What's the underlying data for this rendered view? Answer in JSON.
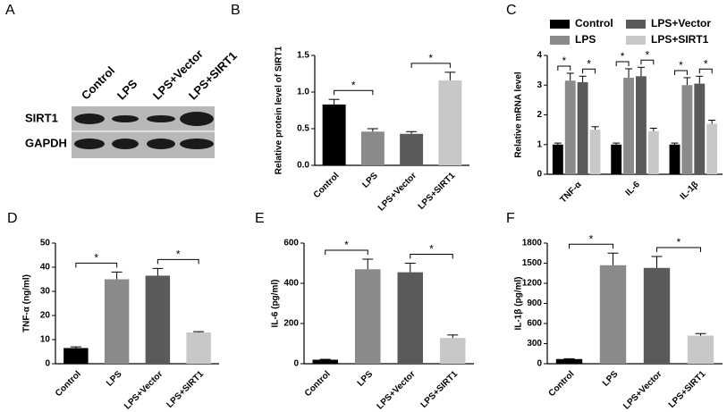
{
  "blot": {
    "label": "A",
    "lanes": [
      "Control",
      "LPS",
      "LPS+Vector",
      "LPS+SIRT1"
    ],
    "rows": [
      "SIRT1",
      "GAPDH"
    ]
  },
  "chart_data": [
    {
      "type": "bar",
      "label": "B",
      "ylabel": "Relative protein level of SIRT1",
      "categories": [
        "Control",
        "LPS",
        "LPS+Vector",
        "LPS+SIRT1"
      ],
      "values": [
        0.83,
        0.46,
        0.43,
        1.16
      ],
      "errors": [
        0.07,
        0.04,
        0.03,
        0.11
      ],
      "colors": [
        "#000000",
        "#8a8a8a",
        "#5a5a5a",
        "#c8c8c8"
      ],
      "ylim": [
        0,
        1.5
      ],
      "yticks": [
        {
          "value": 0,
          "label": "0.0"
        },
        0.5,
        {
          "value": 1,
          "label": "1.0"
        },
        1.5
      ],
      "significance": [
        {
          "label": "*",
          "pair": [
            0,
            1
          ]
        },
        {
          "label": "*",
          "pair": [
            2,
            3
          ]
        }
      ]
    },
    {
      "type": "grouped_bar",
      "label": "C",
      "ylabel": "Relative mRNA level",
      "categories": [
        "TNF-α",
        "IL-6",
        "IL-1β"
      ],
      "series": [
        {
          "name": "Control",
          "color": "#000000",
          "values": [
            1,
            1,
            1
          ],
          "errors": [
            0.05,
            0.05,
            0.05
          ]
        },
        {
          "name": "LPS",
          "color": "#8a8a8a",
          "values": [
            3.15,
            3.25,
            3.0
          ],
          "errors": [
            0.25,
            0.3,
            0.25
          ]
        },
        {
          "name": "LPS+Vector",
          "color": "#5a5a5a",
          "values": [
            3.1,
            3.3,
            3.05
          ],
          "errors": [
            0.2,
            0.3,
            0.25
          ]
        },
        {
          "name": "LPS+SIRT1",
          "color": "#c8c8c8",
          "values": [
            1.5,
            1.45,
            1.7
          ],
          "errors": [
            0.1,
            0.1,
            0.12
          ]
        }
      ],
      "ylim": [
        0,
        4
      ],
      "yticks": [
        0,
        1,
        2,
        3,
        4
      ],
      "significance": [
        {
          "label": "*",
          "category": 0,
          "pair": [
            0,
            1
          ]
        },
        {
          "label": "*",
          "category": 0,
          "pair": [
            2,
            3
          ]
        },
        {
          "label": "*",
          "category": 1,
          "pair": [
            0,
            1
          ]
        },
        {
          "label": "*",
          "category": 1,
          "pair": [
            2,
            3
          ]
        },
        {
          "label": "*",
          "category": 2,
          "pair": [
            0,
            1
          ]
        },
        {
          "label": "*",
          "category": 2,
          "pair": [
            2,
            3
          ]
        }
      ]
    },
    {
      "type": "bar",
      "label": "D",
      "ylabel": "TNF-α (ng/ml)",
      "categories": [
        "Control",
        "LPS",
        "LPS+Vector",
        "LPS+SIRT1"
      ],
      "values": [
        6.5,
        35,
        36.5,
        13
      ],
      "errors": [
        0.5,
        3,
        3,
        0.3
      ],
      "colors": [
        "#000000",
        "#8a8a8a",
        "#5a5a5a",
        "#c8c8c8"
      ],
      "ylim": [
        0,
        50
      ],
      "yticks": [
        0,
        10,
        20,
        30,
        40,
        50
      ],
      "significance": [
        {
          "label": "*",
          "pair": [
            0,
            1
          ]
        },
        {
          "label": "*",
          "pair": [
            2,
            3
          ]
        }
      ]
    },
    {
      "type": "bar",
      "label": "E",
      "ylabel": "IL-6 (pg/ml)",
      "categories": [
        "Control",
        "LPS",
        "LPS+Vector",
        "LPS+SIRT1"
      ],
      "values": [
        20,
        470,
        455,
        128
      ],
      "errors": [
        2,
        50,
        45,
        15
      ],
      "colors": [
        "#000000",
        "#8a8a8a",
        "#5a5a5a",
        "#c8c8c8"
      ],
      "ylim": [
        0,
        600
      ],
      "yticks": [
        0,
        200,
        400,
        600
      ],
      "significance": [
        {
          "label": "*",
          "pair": [
            0,
            1
          ]
        },
        {
          "label": "*",
          "pair": [
            2,
            3
          ]
        }
      ]
    },
    {
      "type": "bar",
      "label": "F",
      "ylabel": "IL-1β (pg/ml)",
      "categories": [
        "Control",
        "LPS",
        "LPS+Vector",
        "LPS+SIRT1"
      ],
      "values": [
        70,
        1470,
        1430,
        420
      ],
      "errors": [
        5,
        180,
        170,
        30
      ],
      "colors": [
        "#000000",
        "#8a8a8a",
        "#5a5a5a",
        "#c8c8c8"
      ],
      "ylim": [
        0,
        1800
      ],
      "yticks": [
        0,
        300,
        600,
        900,
        1200,
        1500,
        1800
      ],
      "significance": [
        {
          "label": "*",
          "pair": [
            0,
            1
          ]
        },
        {
          "label": "*",
          "pair": [
            2,
            3
          ]
        }
      ]
    }
  ]
}
